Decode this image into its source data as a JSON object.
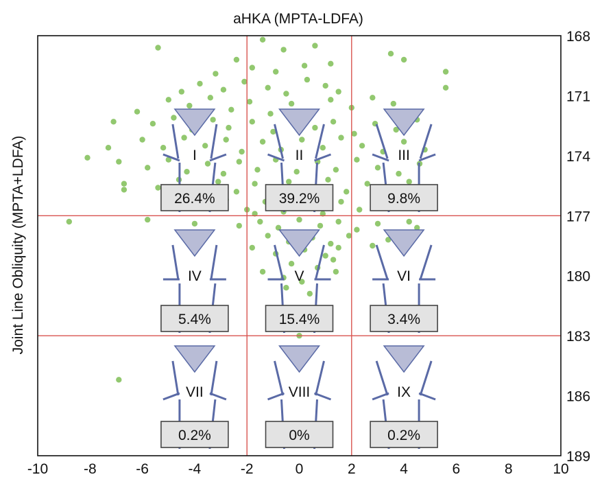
{
  "chart_data": {
    "type": "scatter",
    "title": "aHKA (MPTA-LDFA)",
    "xlabel": "",
    "ylabel": "Joint Line Obliquity (MPTA+LDFA)",
    "xlim": [
      -10,
      10
    ],
    "ylim": [
      168,
      189
    ],
    "y_axis_side": "right",
    "y_axis_reversed": true,
    "x_ticks": [
      "-10",
      "-8",
      "-6",
      "-4",
      "-2",
      "0",
      "2",
      "4",
      "6",
      "8",
      "10"
    ],
    "y_ticks": [
      "168",
      "171",
      "174",
      "177",
      "180",
      "183",
      "186",
      "189"
    ],
    "grid": false,
    "divider_lines": {
      "x": [
        -2,
        2
      ],
      "y": [
        177,
        183
      ],
      "color": "#d9534f"
    },
    "point_color": "#92c86f",
    "zones": [
      {
        "label": "I",
        "percent": "26.4%"
      },
      {
        "label": "II",
        "percent": "39.2%"
      },
      {
        "label": "III",
        "percent": "9.8%"
      },
      {
        "label": "IV",
        "percent": "5.4%"
      },
      {
        "label": "V",
        "percent": "15.4%"
      },
      {
        "label": "VI",
        "percent": "3.4%"
      },
      {
        "label": "VII",
        "percent": "0.2%"
      },
      {
        "label": "VIII",
        "percent": "0%"
      },
      {
        "label": "IX",
        "percent": "0.2%"
      }
    ],
    "points": [
      [
        -5.4,
        168.6
      ],
      [
        -1.4,
        168.2
      ],
      [
        -0.6,
        168.7
      ],
      [
        0.6,
        168.5
      ],
      [
        -2.4,
        169.2
      ],
      [
        1.2,
        169.4
      ],
      [
        -1.8,
        169.6
      ],
      [
        3.5,
        168.9
      ],
      [
        4.0,
        169.2
      ],
      [
        5.6,
        169.8
      ],
      [
        5.6,
        170.6
      ],
      [
        -3.2,
        169.9
      ],
      [
        -0.9,
        169.8
      ],
      [
        0.2,
        169.5
      ],
      [
        -4.5,
        170.8
      ],
      [
        -3.8,
        170.4
      ],
      [
        -2.9,
        170.7
      ],
      [
        -2.1,
        170.3
      ],
      [
        -1.2,
        170.6
      ],
      [
        -0.5,
        170.9
      ],
      [
        0.3,
        170.2
      ],
      [
        1.0,
        170.5
      ],
      [
        1.5,
        170.8
      ],
      [
        -5.0,
        171.2
      ],
      [
        -4.2,
        171.5
      ],
      [
        -3.4,
        171.1
      ],
      [
        -2.6,
        171.7
      ],
      [
        -1.9,
        171.3
      ],
      [
        -1.1,
        171.9
      ],
      [
        -0.3,
        171.4
      ],
      [
        0.5,
        171.8
      ],
      [
        1.2,
        171.2
      ],
      [
        2.0,
        171.6
      ],
      [
        2.8,
        171.1
      ],
      [
        3.6,
        171.4
      ],
      [
        -6.2,
        171.8
      ],
      [
        -7.1,
        172.3
      ],
      [
        -5.6,
        172.4
      ],
      [
        -4.8,
        172.1
      ],
      [
        -4.1,
        172.7
      ],
      [
        -3.3,
        172.2
      ],
      [
        -2.7,
        172.6
      ],
      [
        -1.8,
        172.3
      ],
      [
        -1.0,
        172.8
      ],
      [
        -0.2,
        172.1
      ],
      [
        0.6,
        172.6
      ],
      [
        1.3,
        172.3
      ],
      [
        2.1,
        172.9
      ],
      [
        2.9,
        172.4
      ],
      [
        3.7,
        172.7
      ],
      [
        4.5,
        172.2
      ],
      [
        -6.0,
        173.2
      ],
      [
        -5.2,
        173.6
      ],
      [
        -4.4,
        173.1
      ],
      [
        -3.6,
        173.5
      ],
      [
        -2.8,
        173.2
      ],
      [
        -2.2,
        173.8
      ],
      [
        -1.4,
        173.3
      ],
      [
        -0.7,
        173.7
      ],
      [
        0.1,
        173.2
      ],
      [
        0.9,
        173.6
      ],
      [
        1.6,
        173.1
      ],
      [
        2.4,
        173.5
      ],
      [
        3.2,
        173.8
      ],
      [
        4.0,
        173.3
      ],
      [
        4.8,
        173.7
      ],
      [
        -7.3,
        173.6
      ],
      [
        -8.1,
        174.1
      ],
      [
        -6.9,
        174.3
      ],
      [
        -5.8,
        174.6
      ],
      [
        -5.0,
        174.2
      ],
      [
        -4.3,
        174.8
      ],
      [
        -3.5,
        174.4
      ],
      [
        -2.9,
        174.9
      ],
      [
        -2.3,
        174.3
      ],
      [
        -1.6,
        174.7
      ],
      [
        -0.9,
        174.2
      ],
      [
        -0.1,
        174.8
      ],
      [
        0.7,
        174.3
      ],
      [
        1.4,
        174.7
      ],
      [
        2.2,
        174.2
      ],
      [
        3.0,
        174.6
      ],
      [
        3.8,
        174.9
      ],
      [
        4.6,
        174.4
      ],
      [
        -6.7,
        175.4
      ],
      [
        -5.4,
        175.6
      ],
      [
        -4.6,
        175.2
      ],
      [
        -3.8,
        175.7
      ],
      [
        -3.1,
        175.3
      ],
      [
        -2.4,
        175.8
      ],
      [
        -1.7,
        175.4
      ],
      [
        -1.0,
        175.9
      ],
      [
        -0.4,
        175.3
      ],
      [
        0.3,
        175.7
      ],
      [
        1.1,
        175.2
      ],
      [
        1.8,
        175.8
      ],
      [
        2.6,
        175.4
      ],
      [
        3.4,
        175.9
      ],
      [
        4.2,
        175.3
      ],
      [
        -6.7,
        175.7
      ],
      [
        -4.9,
        176.3
      ],
      [
        -3.9,
        176.6
      ],
      [
        -2.8,
        176.2
      ],
      [
        -2.0,
        176.7
      ],
      [
        -1.3,
        176.3
      ],
      [
        -0.6,
        176.8
      ],
      [
        0.2,
        176.4
      ],
      [
        0.9,
        176.9
      ],
      [
        1.6,
        176.3
      ],
      [
        2.3,
        176.7
      ],
      [
        3.1,
        176.2
      ],
      [
        -1.7,
        176.9
      ],
      [
        -0.8,
        176.5
      ],
      [
        -8.8,
        177.3
      ],
      [
        -5.8,
        177.2
      ],
      [
        -4.0,
        177.4
      ],
      [
        -2.3,
        177.5
      ],
      [
        -1.5,
        177.3
      ],
      [
        -0.8,
        177.6
      ],
      [
        0.0,
        177.2
      ],
      [
        0.8,
        177.5
      ],
      [
        1.5,
        177.3
      ],
      [
        2.2,
        177.7
      ],
      [
        3.0,
        177.4
      ],
      [
        4.2,
        177.3
      ],
      [
        4.5,
        177.6
      ],
      [
        -1.2,
        178.0
      ],
      [
        -0.4,
        178.3
      ],
      [
        0.5,
        178.1
      ],
      [
        1.2,
        178.4
      ],
      [
        1.9,
        178.0
      ],
      [
        2.8,
        178.5
      ],
      [
        -1.8,
        178.6
      ],
      [
        -0.9,
        178.9
      ],
      [
        0.2,
        178.7
      ],
      [
        1.0,
        179.0
      ],
      [
        1.5,
        178.6
      ],
      [
        3.4,
        178.2
      ],
      [
        -0.3,
        179.4
      ],
      [
        0.7,
        179.6
      ],
      [
        1.3,
        179.2
      ],
      [
        -1.4,
        179.8
      ],
      [
        -0.6,
        180.1
      ],
      [
        0.1,
        180.3
      ],
      [
        1.4,
        179.8
      ],
      [
        -0.5,
        180.6
      ],
      [
        0.4,
        180.9
      ],
      [
        -0.2,
        181.8
      ],
      [
        0.9,
        182.1
      ],
      [
        0.0,
        183.0
      ],
      [
        -6.9,
        185.2
      ]
    ]
  }
}
